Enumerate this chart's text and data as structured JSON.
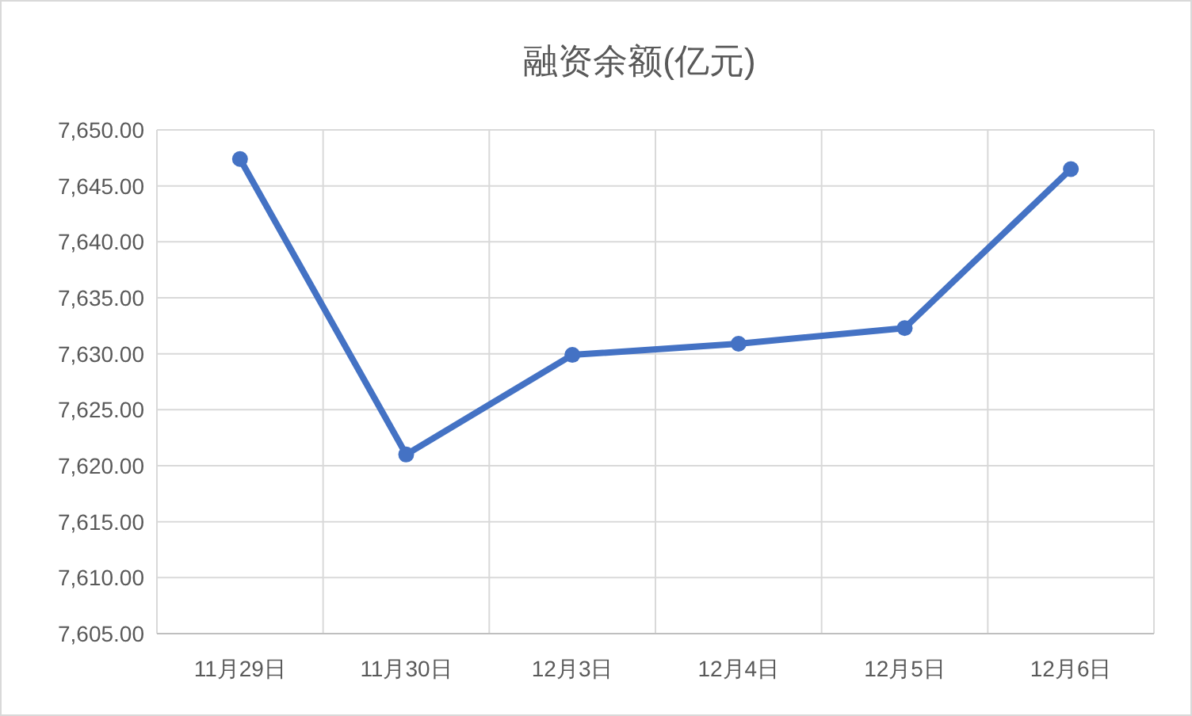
{
  "chart_data": {
    "type": "line",
    "title": "融资余额(亿元)",
    "categories": [
      "11月29日",
      "11月30日",
      "12月3日",
      "12月4日",
      "12月5日",
      "12月6日"
    ],
    "series": [
      {
        "color": "#4472c4",
        "values": [
          7647.4,
          7621.0,
          7629.9,
          7630.9,
          7632.3,
          7646.5
        ]
      }
    ],
    "ylim": [
      7605,
      7650
    ],
    "yticks": [
      {
        "value": 7605,
        "label": "7,605.00"
      },
      {
        "value": 7610,
        "label": "7,610.00"
      },
      {
        "value": 7615,
        "label": "7,615.00"
      },
      {
        "value": 7620,
        "label": "7,620.00"
      },
      {
        "value": 7625,
        "label": "7,625.00"
      },
      {
        "value": 7630,
        "label": "7,630.00"
      },
      {
        "value": 7635,
        "label": "7,635.00"
      },
      {
        "value": 7640,
        "label": "7,640.00"
      },
      {
        "value": 7645,
        "label": "7,645.00"
      },
      {
        "value": 7650,
        "label": "7,650.00"
      }
    ],
    "grid": true,
    "marker": "circle",
    "line_style": "solid"
  }
}
